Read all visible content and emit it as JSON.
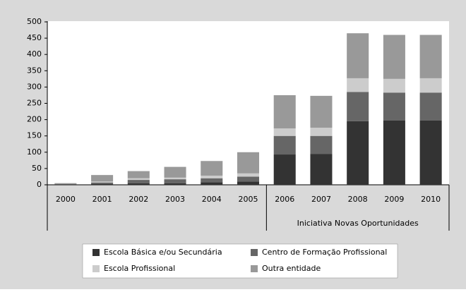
{
  "chart_data": {
    "type": "stacked_bar",
    "categories": [
      "2000",
      "2001",
      "2002",
      "2003",
      "2004",
      "2005",
      "2006",
      "2007",
      "2008",
      "2009",
      "2010"
    ],
    "series": [
      {
        "name": "Escola Básica e/ou Secundária",
        "color": "#333333",
        "values": [
          1,
          3,
          5,
          5,
          8,
          10,
          93,
          95,
          195,
          197,
          197
        ]
      },
      {
        "name": "Centro de Formação Profissional",
        "color": "#666666",
        "values": [
          1,
          4,
          10,
          12,
          12,
          15,
          57,
          55,
          90,
          86,
          86
        ]
      },
      {
        "name": "Escola Profissional",
        "color": "#cccccc",
        "values": [
          0,
          3,
          5,
          5,
          8,
          10,
          23,
          25,
          42,
          42,
          44
        ]
      },
      {
        "name": "Outra entidade",
        "color": "#999999",
        "values": [
          3,
          20,
          22,
          33,
          45,
          65,
          102,
          98,
          138,
          135,
          133
        ]
      }
    ],
    "ylim": [
      0,
      500
    ],
    "yticks": [
      0,
      50,
      100,
      150,
      200,
      250,
      300,
      350,
      400,
      450,
      500
    ],
    "grid": false,
    "legend": "bottom",
    "annotation": {
      "text": "Iniciativa Novas Oportunidades",
      "start": "2006",
      "end": "2010"
    }
  }
}
